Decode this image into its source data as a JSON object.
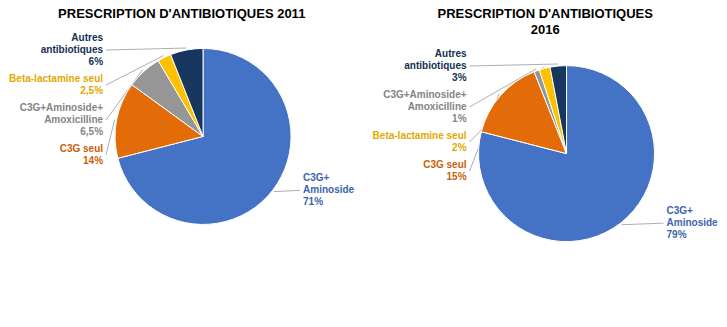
{
  "chart_data": [
    {
      "type": "pie",
      "title": "PRESCRIPTION D'ANTIBIOTIQUES 2011",
      "categories": [
        "C3G+\nAminoside",
        "C3G seul",
        "C3G+Aminoside+\nAmoxicilline",
        "Beta-lactamine seul",
        "Autres\nantibiotiques"
      ],
      "values": [
        71,
        14,
        6.5,
        2.5,
        6
      ],
      "value_labels": [
        "71%",
        "14%",
        "6,5%",
        "2,5%",
        "6%"
      ],
      "colors": [
        "#4472C4",
        "#E36C09",
        "#969696",
        "#FFC000",
        "#17375E"
      ],
      "data_labels": true
    },
    {
      "type": "pie",
      "title": "PRESCRIPTION D'ANTIBIOTIQUES\n2016",
      "categories": [
        "C3G+\nAminoside",
        "C3G seul",
        "C3G+Aminoside+\nAmoxicilline",
        "Beta-lactamine seul",
        "Autres\nantibiotiques"
      ],
      "values": [
        79,
        15,
        1,
        2,
        3
      ],
      "value_labels": [
        "79%",
        "15%",
        "1%",
        "2%",
        "3%"
      ],
      "colors": [
        "#4472C4",
        "#E36C09",
        "#969696",
        "#FFC000",
        "#17375E"
      ],
      "data_labels": true
    }
  ]
}
